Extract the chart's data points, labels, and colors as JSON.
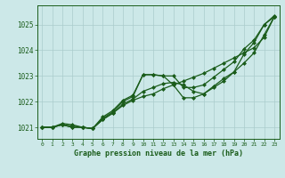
{
  "bg_color": "#cce8e8",
  "line_color": "#1a5c1a",
  "grid_color": "#aacccc",
  "xlabel": "Graphe pression niveau de la mer (hPa)",
  "xlabel_color": "#1a5c1a",
  "tick_color": "#1a5c1a",
  "ylim": [
    1020.55,
    1025.75
  ],
  "yticks": [
    1021,
    1022,
    1023,
    1024,
    1025
  ],
  "xticks": [
    0,
    1,
    2,
    3,
    4,
    5,
    6,
    7,
    8,
    9,
    10,
    11,
    12,
    13,
    14,
    15,
    16,
    17,
    18,
    19,
    20,
    21,
    22,
    23
  ],
  "series": [
    [
      1021.0,
      1021.0,
      1021.1,
      1021.0,
      1021.0,
      1020.95,
      1021.3,
      1021.55,
      1021.85,
      1022.05,
      1022.2,
      1022.3,
      1022.5,
      1022.65,
      1022.8,
      1022.95,
      1023.1,
      1023.3,
      1023.5,
      1023.7,
      1023.9,
      1024.1,
      1024.5,
      1025.3
    ],
    [
      1021.0,
      1021.0,
      1021.1,
      1021.0,
      1021.0,
      1020.95,
      1021.3,
      1021.55,
      1021.9,
      1022.1,
      1022.4,
      1022.55,
      1022.7,
      1022.75,
      1022.65,
      1022.4,
      1022.3,
      1022.6,
      1022.9,
      1023.15,
      1023.5,
      1023.9,
      1024.6,
      1025.3
    ],
    [
      1021.0,
      1021.0,
      1021.1,
      1021.05,
      1021.0,
      1020.95,
      1021.35,
      1021.6,
      1022.0,
      1022.2,
      1023.05,
      1023.05,
      1023.0,
      1022.65,
      1022.15,
      1022.15,
      1022.3,
      1022.55,
      1022.8,
      1023.15,
      1023.85,
      1024.3,
      1025.0,
      1025.3
    ],
    [
      1021.0,
      1021.0,
      1021.15,
      1021.1,
      1021.0,
      1020.95,
      1021.4,
      1021.65,
      1022.05,
      1022.25,
      1023.05,
      1023.05,
      1023.0,
      1023.0,
      1022.55,
      1022.55,
      1022.65,
      1022.95,
      1023.25,
      1023.55,
      1024.05,
      1024.4,
      1025.0,
      1025.35
    ]
  ]
}
